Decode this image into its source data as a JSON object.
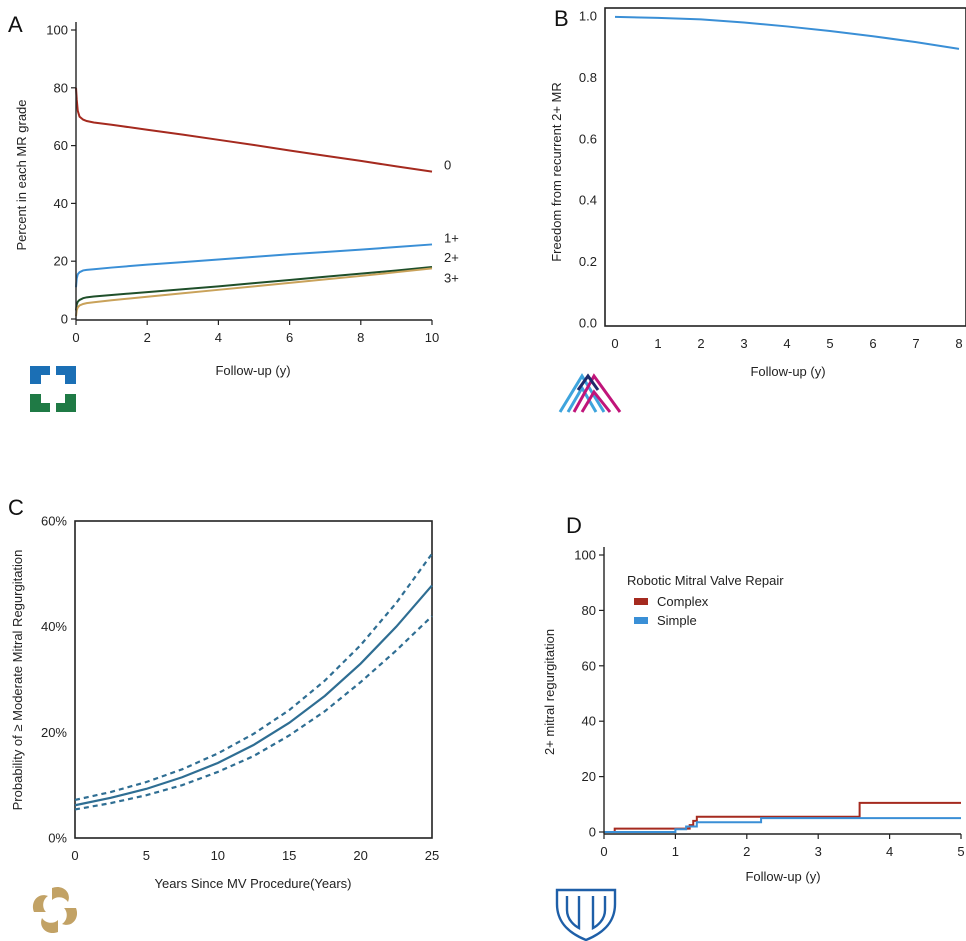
{
  "colors": {
    "red": "#a52a1f",
    "blue": "#3a8fd6",
    "darkgreen": "#1f4f2a",
    "gold": "#c9a25a",
    "teal": "#2f6e93",
    "axis": "#222222",
    "cc_blue": "#1b6fb5",
    "cc_green": "#1f7a45",
    "ms_blue": "#3ea4dd",
    "ms_magenta": "#c0157a",
    "ms_navy": "#1f2a6b",
    "mayo_blue": "#1e5fa8",
    "gold_logo": "#c2a265"
  },
  "chart_data": [
    {
      "panel": "A",
      "type": "line",
      "xlabel": "Follow-up (y)",
      "ylabel": "Percent in each MR grade",
      "xlim": [
        0,
        10
      ],
      "ylim": [
        0,
        100
      ],
      "xticks": [
        "0",
        "2",
        "4",
        "6",
        "8",
        "10"
      ],
      "yticks": [
        "0",
        "20",
        "40",
        "60",
        "80",
        "100"
      ],
      "grid": false,
      "series": [
        {
          "name": "0",
          "color_key": "red",
          "x": [
            0,
            0.02,
            0.05,
            0.1,
            0.2,
            0.3,
            0.5,
            1,
            2,
            3,
            4,
            5,
            6,
            7,
            8,
            9,
            10
          ],
          "y": [
            80,
            76,
            72,
            70,
            69,
            68.5,
            68,
            67.2,
            65.5,
            63.8,
            62,
            60.2,
            58.3,
            56.5,
            54.7,
            52.8,
            51
          ]
        },
        {
          "name": "1+",
          "color_key": "blue",
          "x": [
            0,
            0.02,
            0.05,
            0.1,
            0.2,
            0.3,
            0.5,
            1,
            2,
            3,
            4,
            5,
            6,
            7,
            8,
            9,
            10
          ],
          "y": [
            11,
            14,
            15.5,
            16.2,
            16.8,
            17,
            17.2,
            17.8,
            18.8,
            19.7,
            20.6,
            21.5,
            22.4,
            23.2,
            24,
            24.9,
            25.8
          ]
        },
        {
          "name": "2+",
          "color_key": "darkgreen",
          "x": [
            0,
            0.02,
            0.05,
            0.1,
            0.2,
            0.3,
            0.5,
            1,
            2,
            3,
            4,
            5,
            6,
            7,
            8,
            9,
            10
          ],
          "y": [
            3,
            5,
            6,
            6.6,
            7.2,
            7.5,
            7.8,
            8.3,
            9.3,
            10.3,
            11.3,
            12.4,
            13.5,
            14.6,
            15.7,
            16.8,
            18
          ]
        },
        {
          "name": "3+",
          "color_key": "gold",
          "x": [
            0,
            0.02,
            0.05,
            0.1,
            0.2,
            0.3,
            0.5,
            1,
            2,
            3,
            4,
            5,
            6,
            7,
            8,
            9,
            10
          ],
          "y": [
            1,
            3,
            4,
            4.7,
            5.2,
            5.5,
            5.8,
            6.5,
            7.7,
            8.9,
            10.1,
            11.3,
            12.5,
            13.7,
            14.9,
            16.2,
            17.5
          ]
        }
      ]
    },
    {
      "panel": "B",
      "type": "line",
      "xlabel": "Follow-up (y)",
      "ylabel": "Freedom from recurrent  2+ MR",
      "xlim": [
        0,
        8
      ],
      "ylim": [
        0,
        1
      ],
      "xticks": [
        "0",
        "1",
        "2",
        "3",
        "4",
        "5",
        "6",
        "7",
        "8"
      ],
      "yticks": [
        "0.0",
        "0.2",
        "0.4",
        "0.6",
        "0.8",
        "1.0"
      ],
      "grid": false,
      "series": [
        {
          "color_key": "blue",
          "x": [
            0,
            1,
            2,
            3,
            4,
            5,
            6,
            7,
            8
          ],
          "y": [
            0.997,
            0.994,
            0.989,
            0.979,
            0.966,
            0.951,
            0.934,
            0.915,
            0.893
          ]
        }
      ]
    },
    {
      "panel": "C",
      "type": "line",
      "xlabel": "Years Since MV Procedure(Years)",
      "ylabel": "Probability of ≥ Moderate Mitral Regurgitation",
      "xlim": [
        0,
        25
      ],
      "ylim": [
        0,
        60
      ],
      "xticks": [
        "0",
        "5",
        "10",
        "15",
        "20",
        "25"
      ],
      "yticks": [
        "0%",
        "20%",
        "40%",
        "60%"
      ],
      "grid": false,
      "series": [
        {
          "color_key": "teal",
          "style": "solid",
          "x": [
            0,
            2.5,
            5,
            7.5,
            10,
            12.5,
            15,
            17.5,
            20,
            22.5,
            25
          ],
          "y": [
            6.2,
            7.6,
            9.3,
            11.5,
            14.2,
            17.6,
            21.8,
            26.9,
            33.0,
            40.0,
            47.8
          ]
        },
        {
          "color_key": "teal",
          "style": "dashed",
          "x": [
            0,
            2.5,
            5,
            7.5,
            10,
            12.5,
            15,
            17.5,
            20,
            22.5,
            25
          ],
          "y": [
            7.2,
            8.7,
            10.6,
            13.0,
            16.0,
            19.7,
            24.2,
            29.8,
            36.5,
            44.5,
            53.8
          ]
        },
        {
          "color_key": "teal",
          "style": "dashed",
          "x": [
            0,
            2.5,
            5,
            7.5,
            10,
            12.5,
            15,
            17.5,
            20,
            22.5,
            25
          ],
          "y": [
            5.4,
            6.6,
            8.1,
            10.0,
            12.5,
            15.5,
            19.4,
            24.0,
            29.5,
            35.5,
            42.0
          ]
        }
      ]
    },
    {
      "panel": "D",
      "type": "line",
      "step": true,
      "xlabel": "Follow-up (y)",
      "ylabel": "2+ mitral regurgitation",
      "xlim": [
        0,
        5
      ],
      "ylim": [
        0,
        100
      ],
      "xticks": [
        "0",
        "1",
        "2",
        "3",
        "4",
        "5"
      ],
      "yticks": [
        "0",
        "20",
        "40",
        "60",
        "80",
        "100"
      ],
      "grid": false,
      "legend_title": "Robotic Mitral Valve Repair",
      "legend_position": "top-left",
      "series": [
        {
          "name": "Complex",
          "color_key": "red",
          "x": [
            0,
            0.15,
            1.05,
            1.2,
            1.25,
            1.3,
            3.58,
            5
          ],
          "y": [
            0,
            1.2,
            1.2,
            2.5,
            4,
            5.5,
            10.5,
            10.5
          ]
        },
        {
          "name": "Simple",
          "color_key": "blue",
          "x": [
            0,
            1,
            1.15,
            1.3,
            2.2,
            5
          ],
          "y": [
            0,
            1,
            2,
            3.5,
            5,
            5
          ]
        }
      ]
    }
  ]
}
